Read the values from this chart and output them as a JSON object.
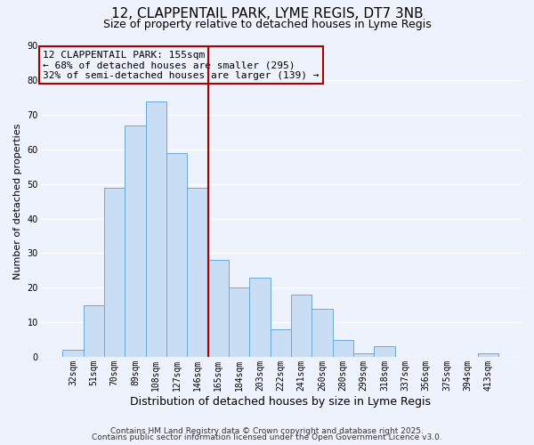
{
  "title": "12, CLAPPENTAIL PARK, LYME REGIS, DT7 3NB",
  "subtitle": "Size of property relative to detached houses in Lyme Regis",
  "xlabel": "Distribution of detached houses by size in Lyme Regis",
  "ylabel": "Number of detached properties",
  "bar_labels": [
    "32sqm",
    "51sqm",
    "70sqm",
    "89sqm",
    "108sqm",
    "127sqm",
    "146sqm",
    "165sqm",
    "184sqm",
    "203sqm",
    "222sqm",
    "241sqm",
    "260sqm",
    "280sqm",
    "299sqm",
    "318sqm",
    "337sqm",
    "356sqm",
    "375sqm",
    "394sqm",
    "413sqm"
  ],
  "bar_values": [
    2,
    15,
    49,
    67,
    74,
    59,
    49,
    28,
    20,
    23,
    8,
    18,
    14,
    5,
    1,
    3,
    0,
    0,
    0,
    0,
    1
  ],
  "bar_color": "#c9ddf5",
  "bar_edge_color": "#6aaad4",
  "vline_x": 6.5,
  "vline_color": "#aa0000",
  "ylim": [
    0,
    90
  ],
  "yticks": [
    0,
    10,
    20,
    30,
    40,
    50,
    60,
    70,
    80,
    90
  ],
  "annotation_line1": "12 CLAPPENTAIL PARK: 155sqm",
  "annotation_line2": "← 68% of detached houses are smaller (295)",
  "annotation_line3": "32% of semi-detached houses are larger (139) →",
  "annotation_box_edge_color": "#aa0000",
  "footer_line1": "Contains HM Land Registry data © Crown copyright and database right 2025.",
  "footer_line2": "Contains public sector information licensed under the Open Government Licence v3.0.",
  "background_color": "#eef2fc",
  "grid_color": "#ffffff",
  "title_fontsize": 11,
  "subtitle_fontsize": 9,
  "xlabel_fontsize": 9,
  "ylabel_fontsize": 8,
  "tick_fontsize": 7,
  "annot_fontsize": 8,
  "footer_fontsize": 6.5
}
